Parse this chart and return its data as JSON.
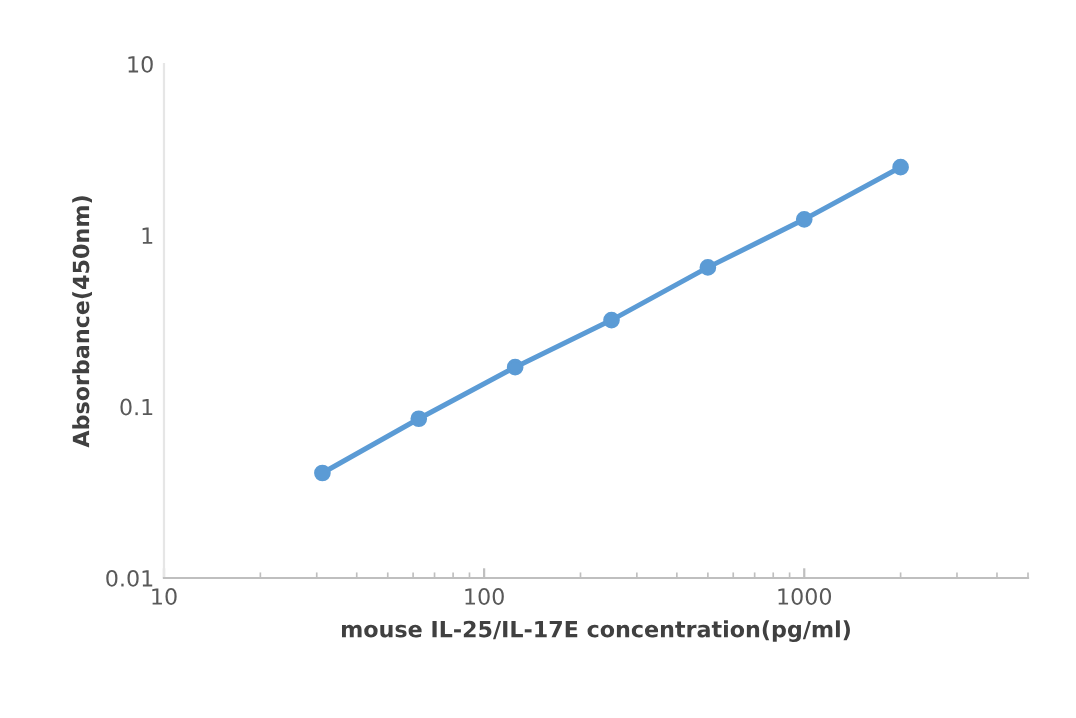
{
  "chart_data": {
    "type": "line",
    "xlabel": "mouse IL-25/IL-17E concentration(pg/ml)",
    "ylabel": "Absorbance(450nm)",
    "x": [
      31.25,
      62.5,
      125,
      250,
      500,
      1000,
      2000
    ],
    "series": [
      {
        "color": "#5b9bd5",
        "values": [
          0.041,
          0.085,
          0.17,
          0.32,
          0.65,
          1.24,
          2.5
        ]
      }
    ],
    "log": "xy",
    "xlim": [
      10,
      5000
    ],
    "ylim": [
      0.01,
      10
    ],
    "xticks": [
      10,
      100,
      1000
    ],
    "yticks": [
      0.01,
      0.1,
      1,
      10
    ],
    "marker": "circle",
    "line_style": "solid",
    "grid": false,
    "legend": false
  }
}
